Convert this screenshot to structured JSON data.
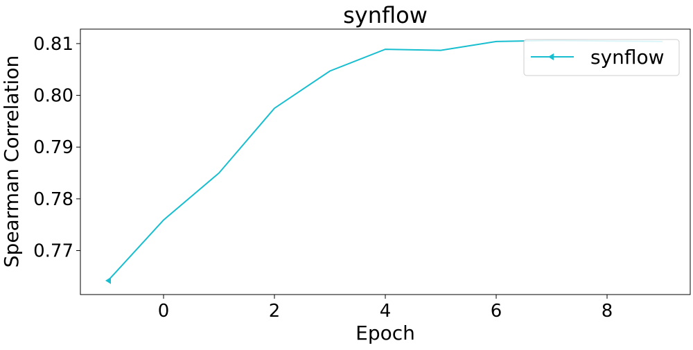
{
  "chart_data": {
    "type": "line",
    "title": "synflow",
    "xlabel": "Epoch",
    "ylabel": "Spearman Correlation",
    "xlim": [
      -1.5,
      9.5
    ],
    "ylim": [
      0.7615,
      0.8128
    ],
    "xticks": [
      0,
      2,
      4,
      6,
      8
    ],
    "yticks": [
      0.77,
      0.78,
      0.79,
      0.8,
      0.81
    ],
    "ytick_labels": [
      "0.77",
      "0.78",
      "0.79",
      "0.80",
      "0.81"
    ],
    "grid": false,
    "legend_position": "upper right",
    "series": [
      {
        "name": "synflow",
        "color": "#17becf",
        "marker": "triangle-left",
        "x": [
          -1,
          0,
          1,
          2,
          3,
          4,
          5,
          6,
          7,
          8,
          9
        ],
        "y": [
          0.7642,
          0.7759,
          0.785,
          0.7975,
          0.8047,
          0.8089,
          0.8087,
          0.8104,
          0.8106,
          0.8105,
          0.8104
        ]
      }
    ]
  }
}
